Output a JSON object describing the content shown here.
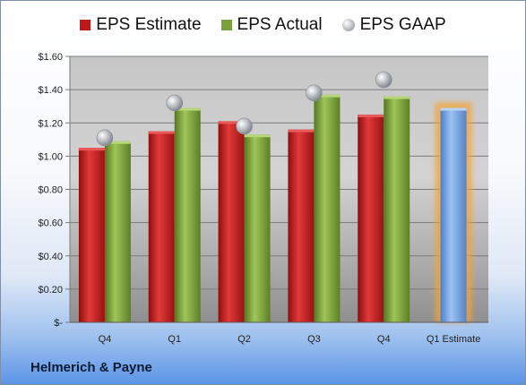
{
  "chart_data": {
    "type": "bar",
    "categories": [
      "Q4",
      "Q1",
      "Q2",
      "Q3",
      "Q4",
      "Q1 Estimate"
    ],
    "series": [
      {
        "name": "EPS Estimate",
        "type": "bar",
        "color": "#c01818",
        "values": [
          1.05,
          1.15,
          1.21,
          1.16,
          1.25,
          null
        ]
      },
      {
        "name": "EPS Actual",
        "type": "bar",
        "color": "#7ba03c",
        "values": [
          1.09,
          1.29,
          1.13,
          1.37,
          1.36,
          null
        ]
      },
      {
        "name": "EPS GAAP",
        "type": "scatter",
        "color": "#a9adb4",
        "values": [
          1.11,
          1.32,
          1.18,
          1.38,
          1.46,
          null
        ]
      },
      {
        "name": "",
        "type": "bar",
        "color": "#6f9ee0",
        "highlight": "#f5a334",
        "values": [
          null,
          null,
          null,
          null,
          null,
          1.29
        ]
      }
    ],
    "ylim": [
      0,
      1.6
    ],
    "yticks": [
      0,
      0.2,
      0.4,
      0.6,
      0.8,
      1.0,
      1.2,
      1.4,
      1.6
    ],
    "ytick_labels": [
      "$-",
      "$0.20",
      "$0.40",
      "$0.60",
      "$0.80",
      "$1.00",
      "$1.20",
      "$1.40",
      "$1.60"
    ],
    "grid": true,
    "legend_position": "top"
  },
  "footer": {
    "company": "Helmerich & Payne"
  }
}
